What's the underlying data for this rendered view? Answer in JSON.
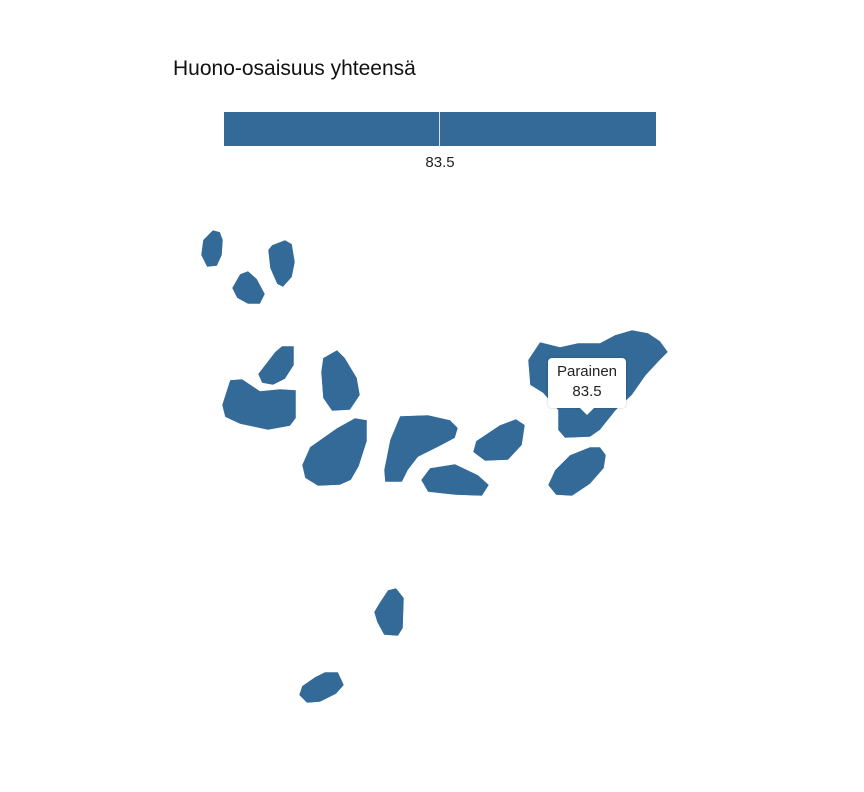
{
  "map": {
    "title": "Huono-osaisuus yhteensä",
    "fill_color": "#336a98",
    "legend": {
      "value_label": "83.5",
      "value": 83.5
    },
    "tooltip": {
      "region_name": "Parainen",
      "value": "83.5"
    }
  }
}
